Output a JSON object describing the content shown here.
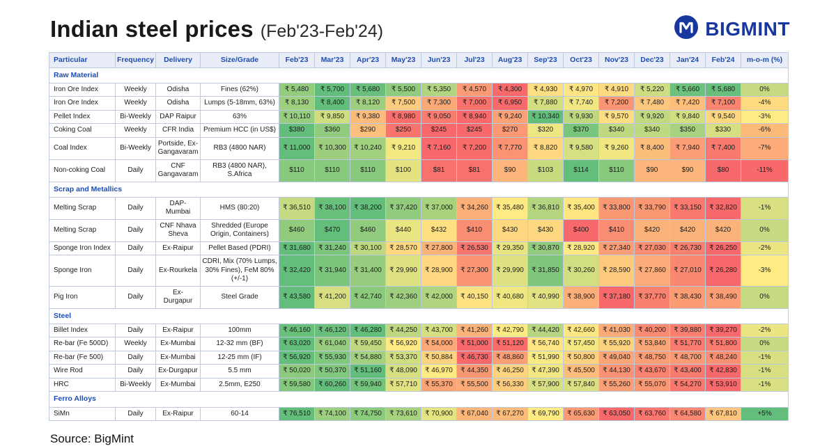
{
  "header": {
    "title": "Indian steel prices",
    "subtitle": "(Feb'23-Feb'24)",
    "brand": "BIGMINT"
  },
  "source_label": "Source: BigMint",
  "colors": {
    "brand_blue": "#17379E",
    "header_text": "#1D4DB0",
    "header_bg": "#E9EDF8",
    "border": "#BDC9DF",
    "scale_low": "#F8696B",
    "scale_mid": "#FFEB84",
    "scale_high": "#63BE7B"
  },
  "chart_data": {
    "type": "table",
    "title": "Indian steel prices (Feb'23-Feb'24)",
    "heatmap": "per-row 3-color scale: red = row minimum, yellow = middle, green = row maximum",
    "columns": [
      "Particular",
      "Frequency",
      "Delivery",
      "Size/Grade",
      "Feb'23",
      "Mar'23",
      "Apr'23",
      "May'23",
      "Jun'23",
      "Jul'23",
      "Aug'23",
      "Sep'23",
      "Oct'23",
      "Nov'23",
      "Dec'23",
      "Jan'24",
      "Feb'24",
      "m-o-m (%)"
    ],
    "months": [
      "Feb'23",
      "Mar'23",
      "Apr'23",
      "May'23",
      "Jun'23",
      "Jul'23",
      "Aug'23",
      "Sep'23",
      "Oct'23",
      "Nov'23",
      "Dec'23",
      "Jan'24",
      "Feb'24"
    ],
    "sections": [
      {
        "name": "Raw Material",
        "rows": [
          {
            "particular": "Iron Ore Index",
            "frequency": "Weekly",
            "delivery": "Odisha",
            "size_grade": "Fines (62%)",
            "currency": "₹",
            "values": [
              5480,
              5700,
              5680,
              5500,
              5350,
              4570,
              4300,
              4930,
              4970,
              4910,
              5220,
              5660,
              5680
            ],
            "mom": "0%",
            "mom_value": 0
          },
          {
            "particular": "Iron Ore Index",
            "frequency": "Weekly",
            "delivery": "Odisha",
            "size_grade": "Lumps (5-18mm, 63%)",
            "currency": "₹",
            "values": [
              8130,
              8400,
              8120,
              7500,
              7300,
              7000,
              6950,
              7880,
              7740,
              7200,
              7480,
              7420,
              7100
            ],
            "mom": "-4%",
            "mom_value": -4
          },
          {
            "particular": "Pellet Index",
            "frequency": "Bi-Weekly",
            "delivery": "DAP Raipur",
            "size_grade": "63%",
            "currency": "₹",
            "values": [
              10110,
              9850,
              9380,
              8980,
              9050,
              8940,
              9240,
              10340,
              9930,
              9570,
              9920,
              9840,
              9540
            ],
            "mom": "-3%",
            "mom_value": -3
          },
          {
            "particular": "Coking Coal",
            "frequency": "Weekly",
            "delivery": "CFR India",
            "size_grade": "Premium HCC (in US$)",
            "currency": "$",
            "values": [
              380,
              360,
              290,
              250,
              245,
              245,
              270,
              320,
              370,
              340,
              340,
              350,
              330
            ],
            "mom": "-6%",
            "mom_value": -6
          },
          {
            "particular": "Coal Index",
            "frequency": "Bi-Weekly",
            "delivery": "Portside, Ex-Gangavaram",
            "size_grade": "RB3 (4800 NAR)",
            "currency": "₹",
            "values": [
              11000,
              10300,
              10240,
              9210,
              7160,
              7200,
              7770,
              8820,
              9580,
              9260,
              8400,
              7940,
              7400
            ],
            "mom": "-7%",
            "mom_value": -7
          },
          {
            "particular": "Non-coking Coal",
            "frequency": "Daily",
            "delivery": "CNF Gangavaram",
            "size_grade": "RB3 (4800 NAR), S.Africa",
            "currency": "$",
            "values": [
              110,
              110,
              110,
              100,
              81,
              81,
              90,
              103,
              114,
              110,
              90,
              90,
              80
            ],
            "mom": "-11%",
            "mom_value": -11
          }
        ]
      },
      {
        "name": "Scrap and Metallics",
        "rows": [
          {
            "particular": "Melting Scrap",
            "frequency": "Daily",
            "delivery": "DAP-Mumbai",
            "size_grade": "HMS (80:20)",
            "currency": "₹",
            "values": [
              36510,
              38100,
              38200,
              37420,
              37000,
              34260,
              35480,
              36810,
              35400,
              33800,
              33790,
              33150,
              32820
            ],
            "mom": "-1%",
            "mom_value": -1
          },
          {
            "particular": "Melting Scrap",
            "frequency": "Daily",
            "delivery": "CNF Nhava Sheva",
            "size_grade": "Shredded (Europe Origin, Containers)",
            "currency": "$",
            "values": [
              460,
              470,
              460,
              440,
              432,
              410,
              430,
              430,
              400,
              410,
              420,
              420,
              420
            ],
            "mom": "0%",
            "mom_value": 0
          },
          {
            "particular": "Sponge Iron Index",
            "frequency": "Daily",
            "delivery": "Ex-Raipur",
            "size_grade": "Pellet Based (PDRI)",
            "currency": "₹",
            "values": [
              31680,
              31240,
              30100,
              28570,
              27800,
              26530,
              29350,
              30870,
              28920,
              27340,
              27030,
              26730,
              26250
            ],
            "mom": "-2%",
            "mom_value": -2
          },
          {
            "particular": "Sponge Iron",
            "frequency": "Daily",
            "delivery": "Ex-Rourkela",
            "size_grade": "CDRI, Mix (70% Lumps, 30% Fines), FeM 80% (+/-1)",
            "currency": "₹",
            "values": [
              32420,
              31940,
              31400,
              29990,
              28900,
              27300,
              29990,
              31850,
              30260,
              28590,
              27860,
              27010,
              26280
            ],
            "mom": "-3%",
            "mom_value": -3
          },
          {
            "particular": "Pig Iron",
            "frequency": "Daily",
            "delivery": "Ex- Durgapur",
            "size_grade": "Steel Grade",
            "currency": "₹",
            "values": [
              43580,
              41200,
              42740,
              42360,
              42000,
              40150,
              40680,
              40990,
              38900,
              37180,
              37770,
              38430,
              38490
            ],
            "mom": "0%",
            "mom_value": 0
          }
        ]
      },
      {
        "name": "Steel",
        "rows": [
          {
            "particular": "Billet Index",
            "frequency": "Daily",
            "delivery": "Ex-Raipur",
            "size_grade": "100mm",
            "currency": "₹",
            "values": [
              46160,
              46120,
              46280,
              44250,
              43700,
              41260,
              42790,
              44420,
              42660,
              41030,
              40200,
              39880,
              39270
            ],
            "mom": "-2%",
            "mom_value": -2
          },
          {
            "particular": "Re-bar (Fe 500D)",
            "frequency": "Weekly",
            "delivery": "Ex-Mumbai",
            "size_grade": "12-32 mm (BF)",
            "currency": "₹",
            "values": [
              63020,
              61040,
              59450,
              56920,
              54000,
              51000,
              51120,
              56740,
              57450,
              55920,
              53840,
              51770,
              51800
            ],
            "mom": "0%",
            "mom_value": 0
          },
          {
            "particular": "Re-bar (Fe 500)",
            "frequency": "Daily",
            "delivery": "Ex-Mumbai",
            "size_grade": "12-25 mm (IF)",
            "currency": "₹",
            "values": [
              56920,
              55930,
              54880,
              53370,
              50884,
              46730,
              48860,
              51990,
              50800,
              49040,
              48750,
              48700,
              48240
            ],
            "mom": "-1%",
            "mom_value": -1
          },
          {
            "particular": "Wire Rod",
            "frequency": "Daily",
            "delivery": "Ex-Durgapur",
            "size_grade": "5.5 mm",
            "currency": "₹",
            "values": [
              50020,
              50370,
              51160,
              48090,
              46970,
              44350,
              46250,
              47390,
              45500,
              44130,
              43670,
              43400,
              42830
            ],
            "mom": "-1%",
            "mom_value": -1
          },
          {
            "particular": "HRC",
            "frequency": "Bi-Weekly",
            "delivery": "Ex-Mumbai",
            "size_grade": "2.5mm, E250",
            "currency": "₹",
            "values": [
              59580,
              60260,
              59940,
              57710,
              55370,
              55500,
              56330,
              57900,
              57840,
              55260,
              55070,
              54270,
              53910
            ],
            "mom": "-1%",
            "mom_value": -1
          }
        ]
      },
      {
        "name": "Ferro Alloys",
        "rows": [
          {
            "particular": "SiMn",
            "frequency": "Daily",
            "delivery": "Ex-Raipur",
            "size_grade": "60-14",
            "currency": "₹",
            "values": [
              76510,
              74100,
              74750,
              73610,
              70900,
              67040,
              67270,
              69790,
              65630,
              63050,
              63760,
              64580,
              67810
            ],
            "mom": "+5%",
            "mom_value": 5
          }
        ]
      }
    ]
  }
}
